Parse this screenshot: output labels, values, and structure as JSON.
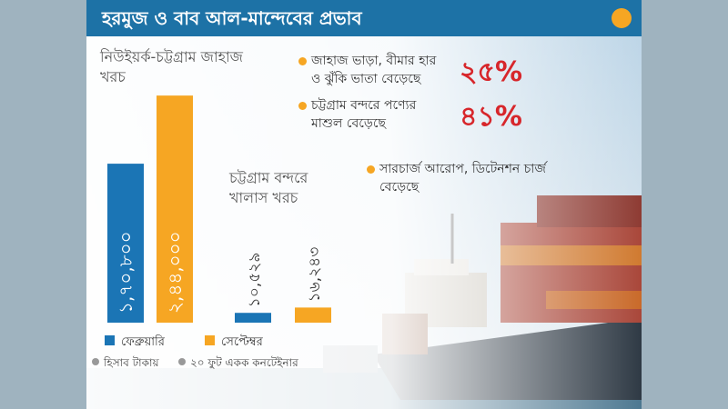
{
  "title": "হরমুজ ও বাব আল-মান্দেবের প্রভাব",
  "chart_data": [
    {
      "type": "bar",
      "title": "নিউইয়র্ক-চট্টগ্রাম জাহাজ খরচ",
      "categories": [
        null
      ],
      "ylim": [
        0,
        250000
      ],
      "series": [
        {
          "name": "ফেব্রুয়ারি",
          "color": "#1b75b5",
          "values": [
            170800
          ],
          "value_labels": [
            "১,৭০,৮০০"
          ]
        },
        {
          "name": "সেপ্টেম্বর",
          "color": "#f6a623",
          "values": [
            244000
          ],
          "value_labels": [
            "২,৪৪,০০০"
          ]
        }
      ]
    },
    {
      "type": "bar",
      "title": "চট্টগ্রাম বন্দরে খালাস খরচ",
      "categories": [
        null
      ],
      "ylim": [
        0,
        250000
      ],
      "series": [
        {
          "color": "#1b75b5",
          "values": [
            10529
          ],
          "value_labels": [
            "১০,৫২৯"
          ]
        },
        {
          "color": "#f6a623",
          "values": [
            16243
          ],
          "value_labels": [
            "১৬,২৪৩"
          ]
        }
      ]
    }
  ],
  "highlights": [
    {
      "text": "জাহাজ ভাড়া, বীমার হার ও ঝুঁকি ভাতা বেড়েছে",
      "value": 25,
      "value_label": "২৫%"
    },
    {
      "text": "চট্টগ্রাম বন্দরে পণ্যের মাশুল বেড়েছে",
      "value": 41,
      "value_label": "৪১%"
    },
    {
      "text": "সারচার্জ আরোপ, ডিটেনশন চার্জ বেড়েছে"
    }
  ],
  "notes": [
    "হিসাব টাকায়",
    "২০ ফুট একক কনটেইনার"
  ]
}
